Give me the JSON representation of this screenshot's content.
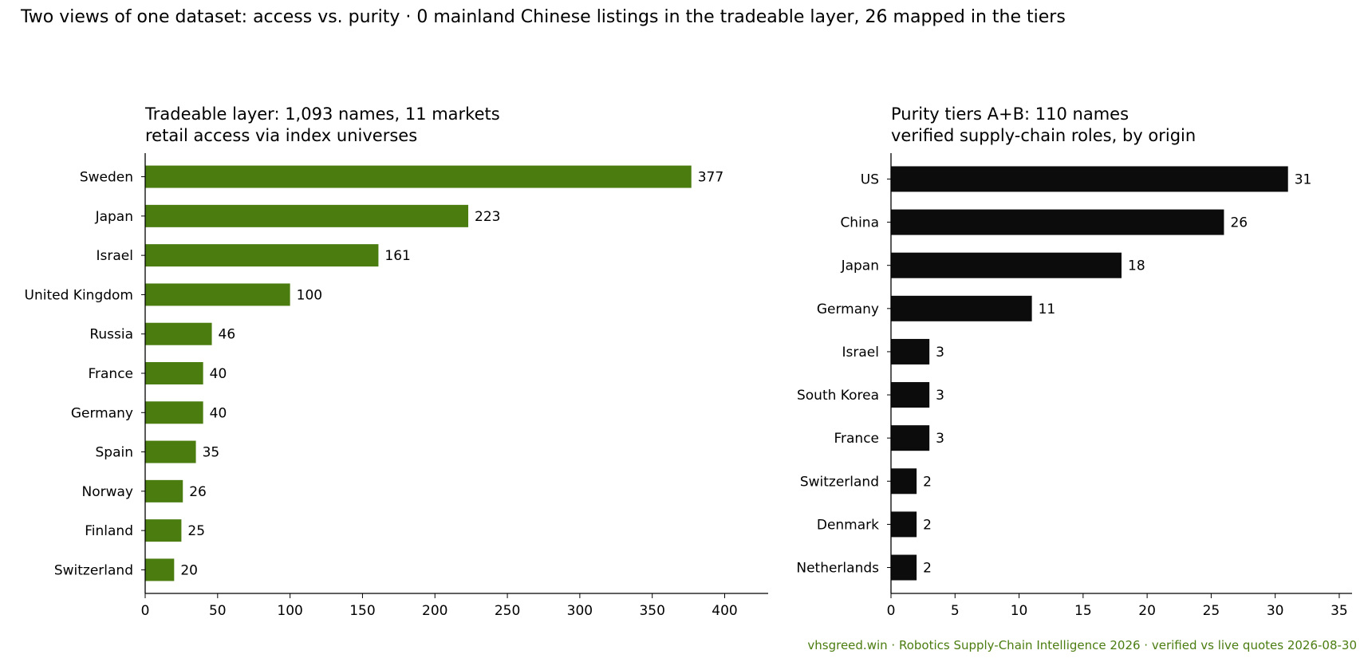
{
  "figure": {
    "suptitle": "Two views of one dataset: access vs. purity  ·  0 mainland Chinese listings in the tradeable layer, 26 mapped in the tiers",
    "footer": "vhsgreed.win  ·  Robotics Supply-Chain Intelligence 2026  ·  verified vs live quotes 2026-08-30"
  },
  "chart_data": [
    {
      "type": "bar",
      "orientation": "horizontal",
      "title_line1": "Tradeable layer: 1,093 names, 11 markets",
      "title_line2": "retail access via index universes",
      "categories": [
        "Sweden",
        "Japan",
        "Israel",
        "United Kingdom",
        "Russia",
        "France",
        "Germany",
        "Spain",
        "Norway",
        "Finland",
        "Switzerland"
      ],
      "values": [
        377,
        223,
        161,
        100,
        46,
        40,
        40,
        35,
        26,
        25,
        20
      ],
      "xlim": [
        0,
        430
      ],
      "xticks": [
        0,
        50,
        100,
        150,
        200,
        250,
        300,
        350,
        400
      ],
      "bar_color": "#4b7c10",
      "grid": false
    },
    {
      "type": "bar",
      "orientation": "horizontal",
      "title_line1": "Purity tiers A+B: 110 names",
      "title_line2": "verified supply-chain roles, by origin",
      "categories": [
        "US",
        "China",
        "Japan",
        "Germany",
        "Israel",
        "South Korea",
        "France",
        "Switzerland",
        "Denmark",
        "Netherlands"
      ],
      "values": [
        31,
        26,
        18,
        11,
        3,
        3,
        3,
        2,
        2,
        2
      ],
      "xlim": [
        0,
        36
      ],
      "xticks": [
        0,
        5,
        10,
        15,
        20,
        25,
        30,
        35
      ],
      "bar_color": "#0c0c0c",
      "grid": false
    }
  ],
  "colors": {
    "footer": "#4b7c10"
  }
}
